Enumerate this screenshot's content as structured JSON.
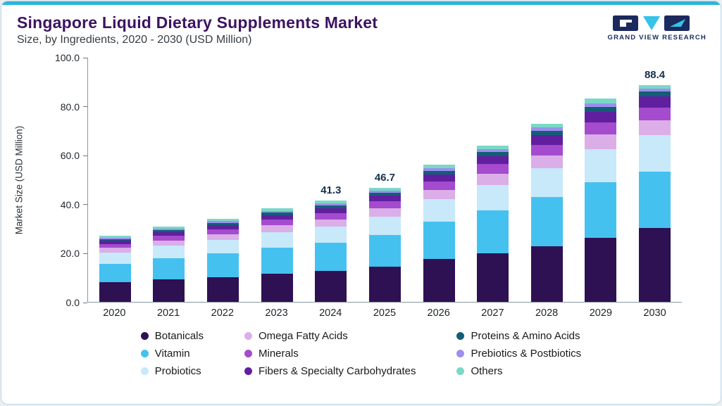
{
  "header": {
    "title": "Singapore Liquid Dietary Supplements Market",
    "subtitle": "Size, by Ingredients, 2020 - 2030 (USD Million)",
    "logo_text": "GRAND VIEW RESEARCH"
  },
  "colors": {
    "accent": "#2AB5D8",
    "title_text": "#3C1361",
    "logo_navy": "#1B2A5E",
    "logo_cyan": "#35C3E6"
  },
  "chart_data": {
    "type": "bar",
    "stacked": true,
    "title": "Singapore Liquid Dietary Supplements Market Size, by Ingredients, 2020 - 2030 (USD Million)",
    "xlabel": "",
    "ylabel": "Market Size (USD Million)",
    "ylim": [
      0,
      100
    ],
    "yticks": [
      "0.0",
      "20.0",
      "40.0",
      "60.0",
      "80.0",
      "100.0"
    ],
    "grid": false,
    "legend_position": "bottom",
    "categories": [
      "2020",
      "2021",
      "2022",
      "2023",
      "2024",
      "2025",
      "2026",
      "2027",
      "2028",
      "2029",
      "2030"
    ],
    "series": [
      {
        "name": "Botanicals",
        "color": "#2E1153",
        "values": [
          8.0,
          9.2,
          10.2,
          11.6,
          12.6,
          14.4,
          17.4,
          19.9,
          22.8,
          26.1,
          30.2
        ]
      },
      {
        "name": "Vitamin",
        "color": "#45C1F0",
        "values": [
          7.6,
          8.6,
          9.5,
          10.6,
          11.4,
          12.8,
          15.3,
          17.4,
          19.9,
          22.7,
          23.0
        ]
      },
      {
        "name": "Probiotics",
        "color": "#C7E9FA",
        "values": [
          4.4,
          5.1,
          5.6,
          6.3,
          6.8,
          7.7,
          9.2,
          10.5,
          12.0,
          13.7,
          15.0
        ]
      },
      {
        "name": "Omega Fatty Acids",
        "color": "#DBAEE8",
        "values": [
          2.0,
          2.2,
          2.4,
          2.7,
          2.9,
          3.3,
          3.9,
          4.5,
          5.1,
          5.8,
          6.0
        ]
      },
      {
        "name": "Minerals",
        "color": "#A44BCE",
        "values": [
          1.6,
          1.8,
          2.0,
          2.3,
          2.5,
          2.8,
          3.4,
          3.9,
          4.4,
          5.0,
          5.2
        ]
      },
      {
        "name": "Fibers & Specialty Carbohydrates",
        "color": "#611FA0",
        "values": [
          1.4,
          1.6,
          1.7,
          1.9,
          2.1,
          2.4,
          2.9,
          3.3,
          3.8,
          4.3,
          4.5
        ]
      },
      {
        "name": "Proteins & Amino Acids",
        "color": "#135E75",
        "values": [
          0.7,
          0.8,
          0.9,
          1.0,
          1.1,
          1.2,
          1.4,
          1.6,
          1.8,
          2.1,
          2.0
        ]
      },
      {
        "name": "Prebiotics & Postbiotics",
        "color": "#9B90EE",
        "values": [
          0.5,
          0.6,
          0.7,
          0.8,
          0.8,
          0.9,
          1.1,
          1.2,
          1.4,
          1.5,
          1.3
        ]
      },
      {
        "name": "Others",
        "color": "#79D9C6",
        "values": [
          0.8,
          0.9,
          1.0,
          1.1,
          1.1,
          1.2,
          1.4,
          1.5,
          1.6,
          1.8,
          1.2
        ]
      }
    ],
    "bar_labels": [
      "",
      "",
      "",
      "",
      "41.3",
      "46.7",
      "",
      "",
      "",
      "",
      "88.4"
    ],
    "totals": [
      27.0,
      30.8,
      34.0,
      38.3,
      41.3,
      46.7,
      56.0,
      63.8,
      72.8,
      83.0,
      88.4
    ]
  }
}
